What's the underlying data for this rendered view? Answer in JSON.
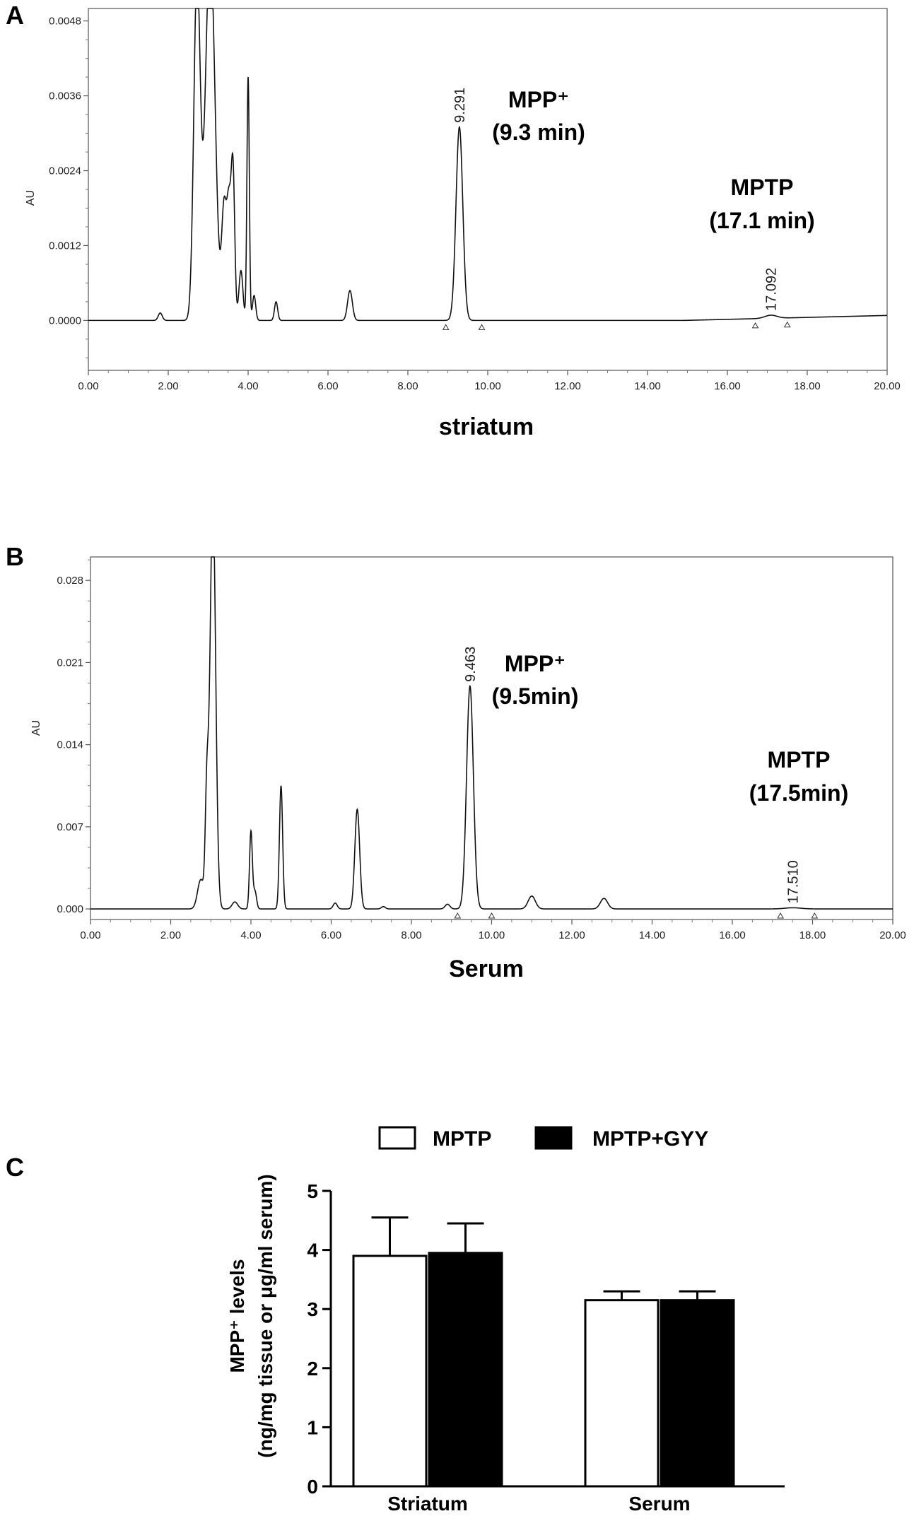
{
  "chart_data": [
    {
      "type": "line",
      "panel_label": "A",
      "xlabel": "striatum",
      "ylabel": "AU",
      "xlim": [
        0,
        20
      ],
      "ylim": [
        -0.0008,
        0.005
      ],
      "xticks": [
        "0.00",
        "2.00",
        "4.00",
        "6.00",
        "8.00",
        "10.00",
        "12.00",
        "14.00",
        "16.00",
        "18.00",
        "20.00"
      ],
      "xtick_values": [
        0,
        2,
        4,
        6,
        8,
        10,
        12,
        14,
        16,
        18,
        20
      ],
      "yticks": [
        "0.0000",
        "0.0012",
        "0.0024",
        "0.0036",
        "0.0048"
      ],
      "ytick_values": [
        0,
        0.0012,
        0.0024,
        0.0036,
        0.0048
      ],
      "peaks": [
        {
          "rt": 1.8,
          "height": 0.00012,
          "width": 0.05
        },
        {
          "rt": 2.72,
          "height": 0.0055,
          "width": 0.08
        },
        {
          "rt": 3.05,
          "height": 0.006,
          "width": 0.12
        },
        {
          "rt": 3.4,
          "height": 0.0018,
          "width": 0.06
        },
        {
          "rt": 3.52,
          "height": 0.0017,
          "width": 0.05
        },
        {
          "rt": 3.62,
          "height": 0.0024,
          "width": 0.045
        },
        {
          "rt": 3.82,
          "height": 0.0008,
          "width": 0.05
        },
        {
          "rt": 4.0,
          "height": 0.0039,
          "width": 0.03
        },
        {
          "rt": 4.15,
          "height": 0.0004,
          "width": 0.04
        },
        {
          "rt": 4.7,
          "height": 0.0003,
          "width": 0.04
        },
        {
          "rt": 6.55,
          "height": 0.00048,
          "width": 0.06
        },
        {
          "rt": 9.29,
          "height": 0.0031,
          "width": 0.085
        },
        {
          "rt": 17.09,
          "height": 5e-05,
          "width": 0.15
        }
      ],
      "baseline_drift": [
        [
          0,
          0
        ],
        [
          14.9,
          0
        ],
        [
          20,
          8e-05
        ]
      ],
      "peak_labels": [
        {
          "rt": 9.291,
          "text": "9.291"
        },
        {
          "rt": 17.092,
          "text": "17.092"
        }
      ],
      "integration_markers": [
        8.95,
        9.85,
        16.7,
        17.5
      ],
      "annotations": [
        {
          "lines": [
            "MPP⁺",
            "(9.3 min)"
          ]
        },
        {
          "lines": [
            "MPTP",
            "(17.1 min)"
          ]
        }
      ]
    },
    {
      "type": "line",
      "panel_label": "B",
      "xlabel": "Serum",
      "ylabel": "AU",
      "xlim": [
        0,
        20
      ],
      "ylim": [
        -0.0009,
        0.03
      ],
      "xticks": [
        "0.00",
        "2.00",
        "4.00",
        "6.00",
        "8.00",
        "10.00",
        "12.00",
        "14.00",
        "16.00",
        "18.00",
        "20.00"
      ],
      "xtick_values": [
        0,
        2,
        4,
        6,
        8,
        10,
        12,
        14,
        16,
        18,
        20
      ],
      "yticks": [
        "0.000",
        "0.007",
        "0.014",
        "0.021",
        "0.028"
      ],
      "ytick_values": [
        0,
        0.007,
        0.014,
        0.021,
        0.028
      ],
      "peaks": [
        {
          "rt": 2.75,
          "height": 0.0025,
          "width": 0.08
        },
        {
          "rt": 2.9,
          "height": 0.0088,
          "width": 0.04
        },
        {
          "rt": 3.05,
          "height": 0.035,
          "width": 0.07
        },
        {
          "rt": 3.6,
          "height": 0.0006,
          "width": 0.07
        },
        {
          "rt": 4.0,
          "height": 0.0066,
          "width": 0.035
        },
        {
          "rt": 4.1,
          "height": 0.0015,
          "width": 0.04
        },
        {
          "rt": 4.75,
          "height": 0.0105,
          "width": 0.04
        },
        {
          "rt": 6.1,
          "height": 0.0005,
          "width": 0.05
        },
        {
          "rt": 6.65,
          "height": 0.0085,
          "width": 0.06
        },
        {
          "rt": 7.3,
          "height": 0.0002,
          "width": 0.05
        },
        {
          "rt": 8.9,
          "height": 0.0004,
          "width": 0.06
        },
        {
          "rt": 9.46,
          "height": 0.019,
          "width": 0.085
        },
        {
          "rt": 11.0,
          "height": 0.0011,
          "width": 0.09
        },
        {
          "rt": 12.8,
          "height": 0.0009,
          "width": 0.09
        },
        {
          "rt": 17.51,
          "height": 0.0001,
          "width": 0.2
        }
      ],
      "baseline_drift": [
        [
          0,
          0
        ],
        [
          20,
          0
        ]
      ],
      "peak_labels": [
        {
          "rt": 9.463,
          "text": "9.463"
        },
        {
          "rt": 17.51,
          "text": "17.510"
        }
      ],
      "integration_markers": [
        9.15,
        10.0,
        17.2,
        18.05
      ],
      "annotations": [
        {
          "lines": [
            "MPP⁺",
            "(9.5min)"
          ]
        },
        {
          "lines": [
            "MPTP",
            "(17.5min)"
          ]
        }
      ]
    },
    {
      "type": "bar",
      "panel_label": "C",
      "categories": [
        "Striatum",
        "Serum"
      ],
      "series": [
        {
          "name": "MPTP",
          "values": [
            3.9,
            3.15
          ],
          "errors": [
            0.65,
            0.15
          ],
          "color": "#ffffff"
        },
        {
          "name": "MPTP+GYY",
          "values": [
            3.95,
            3.15
          ],
          "errors": [
            0.5,
            0.15
          ],
          "color": "#000000"
        }
      ],
      "ylabel_lines": [
        "MPP⁺ levels",
        "(ng/mg tissue or μg/ml serum)"
      ],
      "ylim": [
        0,
        5
      ],
      "yticks": [
        "0",
        "1",
        "2",
        "3",
        "4",
        "5"
      ],
      "ytick_values": [
        0,
        1,
        2,
        3,
        4,
        5
      ],
      "legend_position": "top"
    }
  ]
}
